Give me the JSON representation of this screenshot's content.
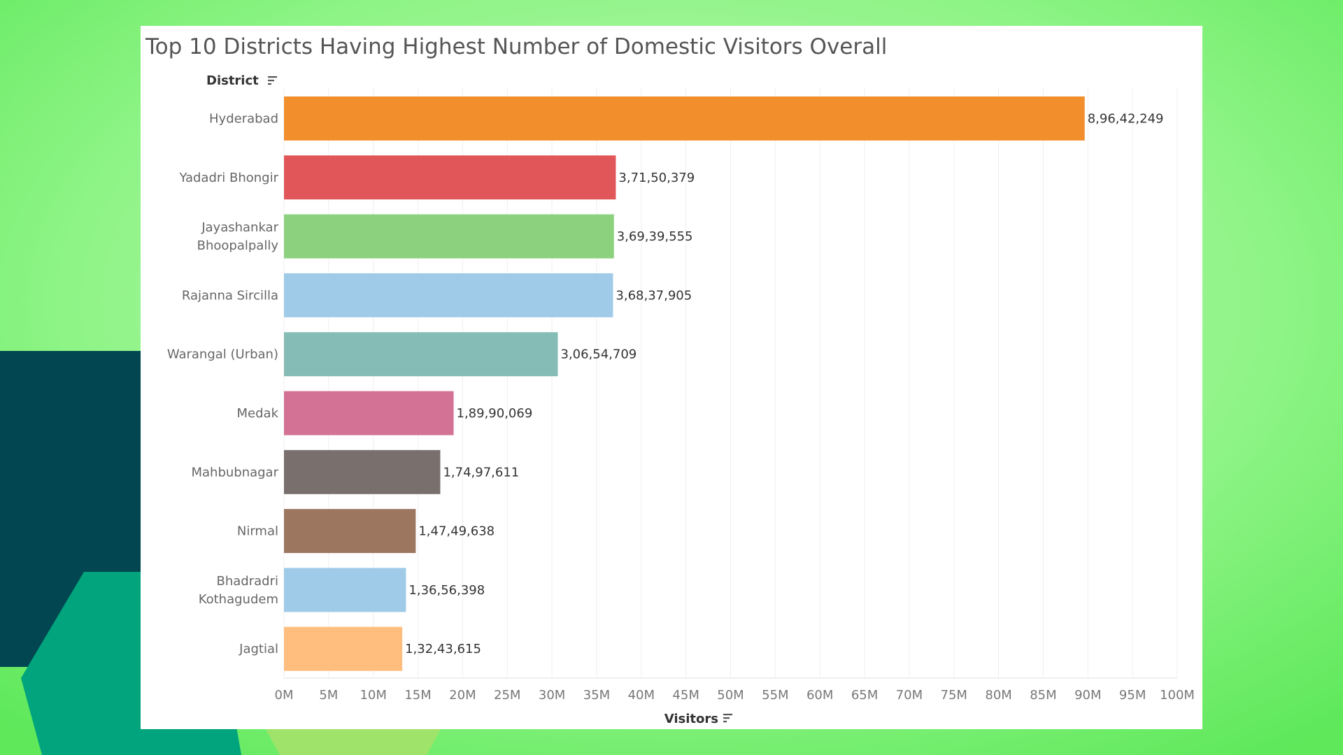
{
  "chart_data": {
    "type": "bar",
    "orientation": "horizontal",
    "title": "Top 10 Districts Having Highest Number of Domestic Visitors Overall",
    "xlabel": "Visitors",
    "ylabel": "District",
    "categories": [
      [
        "Hyderabad"
      ],
      [
        "Yadadri Bhongir"
      ],
      [
        "Jayashankar",
        "Bhoopalpally"
      ],
      [
        "Rajanna Sircilla"
      ],
      [
        "Warangal (Urban)"
      ],
      [
        "Medak"
      ],
      [
        "Mahbubnagar"
      ],
      [
        "Nirmal"
      ],
      [
        "Bhadradri",
        "Kothagudem"
      ],
      [
        "Jagtial"
      ]
    ],
    "values": [
      89642249,
      37150379,
      36939555,
      36837905,
      30654709,
      18990069,
      17497611,
      14749638,
      13656398,
      13243615
    ],
    "value_labels": [
      "8,96,42,249",
      "3,71,50,379",
      "3,69,39,555",
      "3,68,37,905",
      "3,06,54,709",
      "1,89,90,069",
      "1,74,97,611",
      "1,47,49,638",
      "1,36,56,398",
      "1,32,43,615"
    ],
    "colors": [
      "#f28e2b",
      "#e15759",
      "#8cd17d",
      "#a0cbe8",
      "#86bcb6",
      "#d37295",
      "#796f6c",
      "#9d7660",
      "#a0cbe8",
      "#ffbe7d"
    ],
    "xlim": [
      0,
      100000000
    ],
    "xticks": [
      0,
      5000000,
      10000000,
      15000000,
      20000000,
      25000000,
      30000000,
      35000000,
      40000000,
      45000000,
      50000000,
      55000000,
      60000000,
      65000000,
      70000000,
      75000000,
      80000000,
      85000000,
      90000000,
      95000000,
      100000000
    ],
    "xtick_labels": [
      "0M",
      "5M",
      "10M",
      "15M",
      "20M",
      "25M",
      "30M",
      "35M",
      "40M",
      "45M",
      "50M",
      "55M",
      "60M",
      "65M",
      "70M",
      "75M",
      "80M",
      "85M",
      "90M",
      "95M",
      "100M"
    ],
    "grid": true,
    "legend": "none"
  },
  "icons": {
    "sort_icon": "sort-descending-icon"
  }
}
